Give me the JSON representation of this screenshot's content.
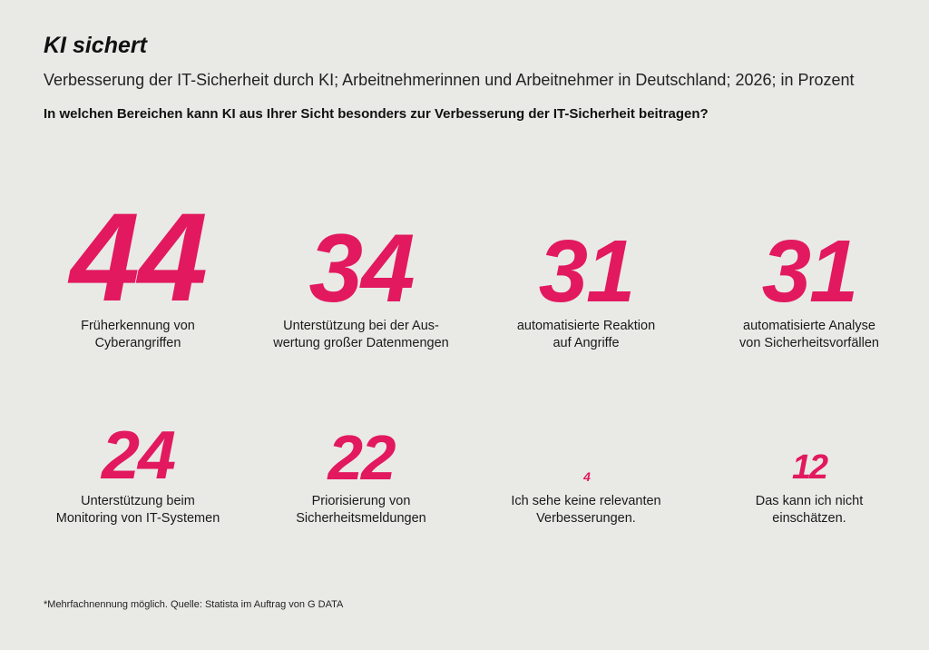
{
  "title": "KI sichert",
  "subtitle": "Verbesserung der IT-Sicherheit durch KI; Arbeitnehmerinnen und Arbeitnehmer in Deutschland; 2026; in Prozent",
  "question": "In welchen Bereichen kann KI aus Ihrer Sicht besonders zur Verbesserung der IT-Sicherheit beitragen?",
  "footnote": "*Mehrfachnennung möglich. Quelle: Statista im Auftrag von G DATA",
  "accent_color": "#e2195f",
  "background_color": "#e9eae6",
  "chart_data": {
    "type": "table",
    "unit": "Prozent",
    "items": [
      {
        "value": 44,
        "label_lines": [
          "Früherkennung von",
          "Cyberangriffen"
        ]
      },
      {
        "value": 34,
        "label_lines": [
          "Unterstützung bei der Aus-",
          "wertung großer Datenmengen"
        ]
      },
      {
        "value": 31,
        "label_lines": [
          "automatisierte Reaktion",
          "auf Angriffe"
        ]
      },
      {
        "value": 31,
        "label_lines": [
          "automatisierte Analyse",
          "von Sicherheitsvorfällen"
        ]
      },
      {
        "value": 24,
        "label_lines": [
          "Unterstützung beim",
          "Monitoring von IT-Systemen"
        ]
      },
      {
        "value": 22,
        "label_lines": [
          "Priorisierung von",
          "Sicherheitsmeldungen"
        ]
      },
      {
        "value": 4,
        "label_lines": [
          "Ich sehe keine relevanten",
          "Verbesserungen."
        ]
      },
      {
        "value": 12,
        "label_lines": [
          "Das kann ich nicht",
          "einschätzen."
        ]
      }
    ]
  }
}
